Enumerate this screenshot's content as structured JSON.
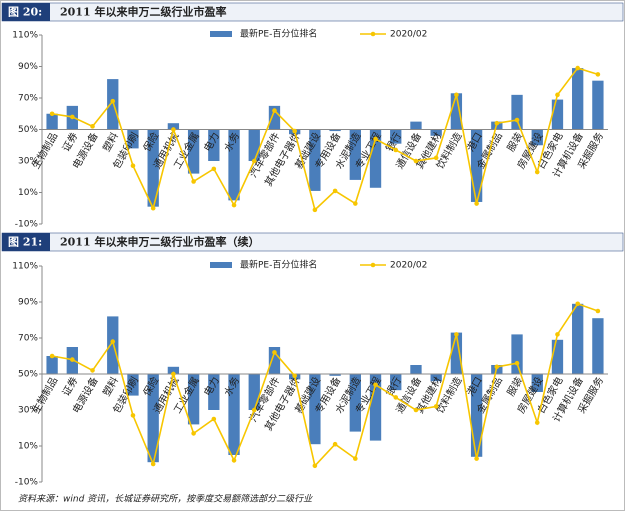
{
  "chart_data": [
    {
      "type": "bar_line",
      "label": "图 20:",
      "title": "2011 年以来申万二级行业市盈率",
      "categories": [
        "生物制品",
        "证券",
        "电源设备",
        "塑料",
        "包装印刷",
        "保险",
        "通用机械",
        "工业金属",
        "电力",
        "水务",
        null,
        "汽车零部件",
        "其他电子器件",
        "基础建设",
        "专用设备",
        "水泥制造",
        "专业工程",
        "银行",
        "通信设备",
        "其他建材",
        "饮料制造",
        "港口",
        "金属制品",
        "服装",
        "房屋建设",
        "白色家电",
        "计算机设备",
        "采掘服务"
      ],
      "series": [
        {
          "name": "最新PE-百分位排名",
          "color": "#4a7ebb",
          "kind": "bar",
          "values": [
            60,
            65,
            50,
            82,
            38,
            1,
            54,
            22,
            30,
            5,
            30,
            65,
            47,
            11,
            49,
            18,
            13,
            41,
            55,
            46,
            73,
            4,
            55,
            72,
            40,
            69,
            89,
            81
          ]
        },
        {
          "name": "2020/02",
          "color": "#f7c600",
          "kind": "line",
          "values": [
            60,
            58,
            52,
            68,
            27,
            0,
            50,
            17,
            25,
            2,
            30,
            62,
            49,
            -1,
            11,
            3,
            44,
            37,
            30,
            32,
            72,
            3,
            54,
            56,
            23,
            72,
            89,
            85
          ]
        }
      ],
      "ylim": [
        -10,
        110
      ],
      "yticks": [
        {
          "value": 110,
          "label": "110%"
        },
        {
          "value": 90,
          "label": "90%"
        },
        {
          "value": 70,
          "label": "70%"
        },
        {
          "value": 50,
          "label": "50%"
        },
        {
          "value": 30,
          "label": "30%"
        },
        {
          "value": 10,
          "label": "10%"
        },
        {
          "value": -10,
          "label": "-10%"
        }
      ],
      "x_axis_at": 50,
      "legend": "top"
    },
    {
      "type": "bar_line",
      "label": "图 21:",
      "title": "2011 年以来申万二级行业市盈率（续）",
      "categories": [
        "生物制品",
        "证券",
        "电源设备",
        "塑料",
        "包装印刷",
        "保险",
        "通用机械",
        "工业金属",
        "电力",
        "水务",
        null,
        "汽车零部件",
        "其他电子器件",
        "基础建设",
        "专用设备",
        "水泥制造",
        "专业工程",
        "银行",
        "通信设备",
        "其他建材",
        "饮料制造",
        "港口",
        "金属制品",
        "服装",
        "房屋建设",
        "白色家电",
        "计算机设备",
        "采掘服务"
      ],
      "series": [
        {
          "name": "最新PE-百分位排名",
          "color": "#4a7ebb",
          "kind": "bar",
          "values": [
            60,
            65,
            50,
            82,
            38,
            1,
            54,
            22,
            30,
            5,
            30,
            65,
            47,
            11,
            49,
            18,
            13,
            41,
            55,
            46,
            73,
            4,
            55,
            72,
            40,
            69,
            89,
            81
          ]
        },
        {
          "name": "2020/02",
          "color": "#f7c600",
          "kind": "line",
          "values": [
            60,
            58,
            52,
            68,
            27,
            0,
            50,
            17,
            25,
            2,
            30,
            62,
            49,
            -1,
            11,
            3,
            44,
            37,
            30,
            32,
            72,
            3,
            54,
            56,
            23,
            72,
            89,
            85
          ]
        }
      ],
      "ylim": [
        -10,
        110
      ],
      "yticks": [
        {
          "value": 110,
          "label": "110%"
        },
        {
          "value": 90,
          "label": "90%"
        },
        {
          "value": 70,
          "label": "70%"
        },
        {
          "value": 50,
          "label": "50%"
        },
        {
          "value": 30,
          "label": "30%"
        },
        {
          "value": 10,
          "label": "10%"
        },
        {
          "value": -10,
          "label": "-10%"
        }
      ],
      "x_axis_at": 50,
      "legend": "top"
    }
  ],
  "source": "资料来源：wind 资讯，长城证券研究所，按季度交易额筛选部分二级行业"
}
